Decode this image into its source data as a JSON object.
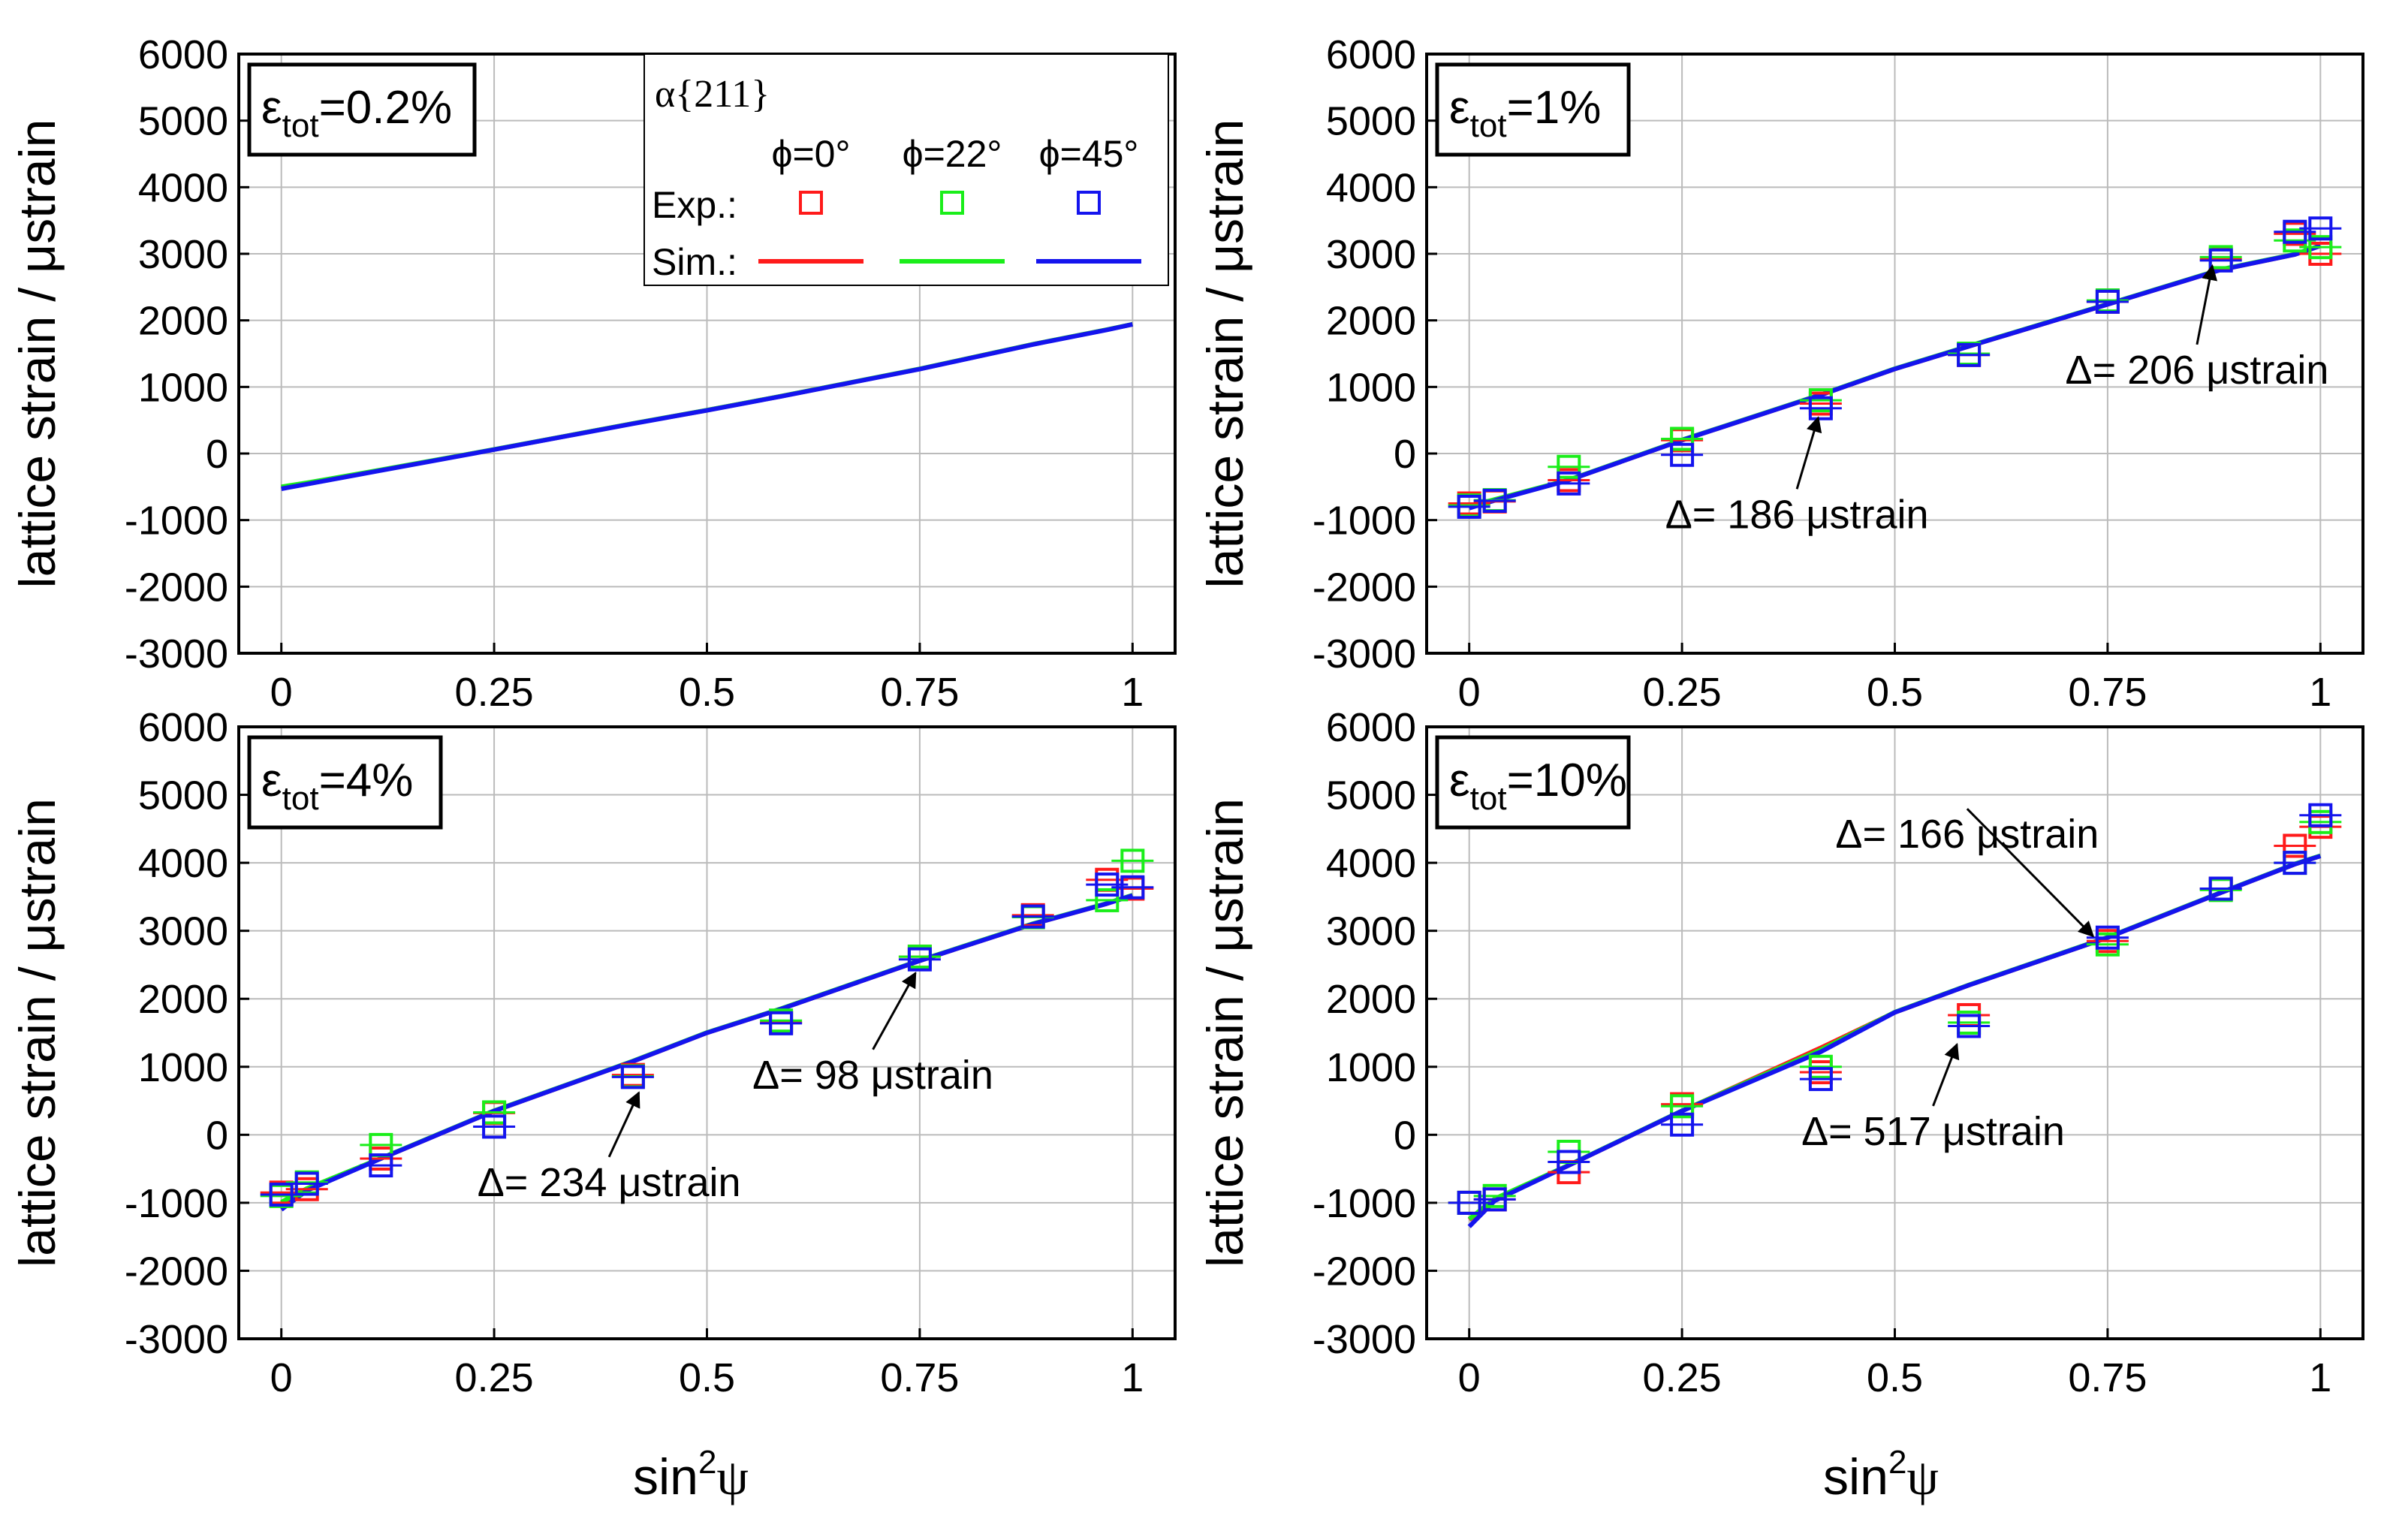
{
  "colors": {
    "red": "#ff1a1a",
    "green": "#1aee1a",
    "blue": "#1414ee",
    "grid": "#bbbbbb"
  },
  "axes": {
    "ylabel": "lattice strain / μstrain",
    "xlabel_base": "sin",
    "xlabel_sup": "2",
    "xlabel_end": "ψ",
    "xlim": [
      -0.05,
      1.05
    ],
    "ylim": [
      -3000,
      6000
    ],
    "xticks": [
      0,
      0.25,
      0.5,
      0.75,
      1
    ],
    "xtick_labels": [
      "0",
      "0.25",
      "0.5",
      "0.75",
      "1"
    ],
    "yticks": [
      -3000,
      -2000,
      -1000,
      0,
      1000,
      2000,
      3000,
      4000,
      5000,
      6000
    ],
    "ytick_labels": [
      "-3000",
      "-2000",
      "-1000",
      "0",
      "1000",
      "2000",
      "3000",
      "4000",
      "5000",
      "6000"
    ],
    "xgrid": [
      0,
      0.25,
      0.5,
      0.75,
      1
    ],
    "ygrid": [
      -3000,
      -2000,
      -1000,
      0,
      1000,
      2000,
      3000,
      4000,
      5000,
      6000
    ]
  },
  "legend": {
    "title": "α{211}",
    "col_phi0": "ϕ=0°",
    "col_phi22": "ϕ=22°",
    "col_phi45": "ϕ=45°",
    "row_exp": "Exp.:",
    "row_sim": "Sim.:"
  },
  "chart_data": [
    {
      "type": "scatter",
      "panel": "top-left",
      "title_base": "ε",
      "title_sub": "tot",
      "title_rest": "=0.2%",
      "series": [
        {
          "name": "Sim. ϕ=0°",
          "color": "red",
          "kind": "line",
          "x": [
            0,
            0.03,
            0.117,
            0.25,
            0.413,
            0.5,
            0.587,
            0.75,
            0.883,
            0.97,
            1
          ],
          "y": [
            -510,
            -450,
            -250,
            60,
            450,
            650,
            860,
            1270,
            1640,
            1860,
            1940
          ]
        },
        {
          "name": "Sim. ϕ=22°",
          "color": "green",
          "kind": "line",
          "x": [
            0,
            0.03,
            0.117,
            0.25,
            0.413,
            0.5,
            0.587,
            0.75,
            0.883,
            0.97,
            1
          ],
          "y": [
            -500,
            -440,
            -245,
            62,
            452,
            652,
            862,
            1272,
            1642,
            1862,
            1942
          ]
        },
        {
          "name": "Sim. ϕ=45°",
          "color": "blue",
          "kind": "line",
          "x": [
            0,
            0.03,
            0.117,
            0.25,
            0.413,
            0.5,
            0.587,
            0.75,
            0.883,
            0.97,
            1
          ],
          "y": [
            -530,
            -460,
            -255,
            58,
            448,
            648,
            858,
            1268,
            1638,
            1858,
            1940
          ]
        }
      ]
    },
    {
      "type": "scatter",
      "panel": "top-right",
      "title_base": "ε",
      "title_sub": "tot",
      "title_rest": "=1%",
      "annotations": [
        {
          "text": "Δ= 186 μstrain",
          "point_x": 0.41,
          "point_y": 540,
          "text_x": 0.385,
          "text_y": -1120
        },
        {
          "text": "Δ= 206 μstrain",
          "point_x": 0.873,
          "point_y": 2820,
          "text_x": 0.855,
          "text_y": 1050
        }
      ],
      "series": [
        {
          "name": "Sim. ϕ=0°",
          "color": "red",
          "kind": "line",
          "x": [
            0,
            0.03,
            0.117,
            0.25,
            0.413,
            0.5,
            0.587,
            0.75,
            0.883,
            0.97,
            1
          ],
          "y": [
            -800,
            -700,
            -400,
            200,
            880,
            1270,
            1610,
            2240,
            2760,
            2990,
            3120
          ]
        },
        {
          "name": "Sim. ϕ=22°",
          "color": "green",
          "kind": "line",
          "x": [
            0,
            0.03,
            0.117,
            0.25,
            0.413,
            0.5,
            0.587,
            0.75,
            0.883,
            0.97,
            1
          ],
          "y": [
            -790,
            -690,
            -395,
            205,
            885,
            1275,
            1615,
            2245,
            2765,
            2995,
            3125
          ]
        },
        {
          "name": "Sim. ϕ=45°",
          "color": "blue",
          "kind": "line",
          "x": [
            0,
            0.03,
            0.117,
            0.25,
            0.413,
            0.5,
            0.587,
            0.75,
            0.883,
            0.97,
            1
          ],
          "y": [
            -820,
            -705,
            -400,
            200,
            880,
            1270,
            1610,
            2240,
            2760,
            2990,
            3120
          ]
        },
        {
          "name": "Exp. ϕ=0°",
          "color": "red",
          "kind": "marker",
          "x": [
            0,
            0.03,
            0.117,
            0.25,
            0.413,
            0.587,
            0.75,
            0.883,
            0.97,
            1
          ],
          "y": [
            -750,
            -720,
            -400,
            200,
            750,
            1480,
            2280,
            2920,
            3300,
            3000
          ]
        },
        {
          "name": "Exp. ϕ=22°",
          "color": "green",
          "kind": "marker",
          "x": [
            0,
            0.03,
            0.117,
            0.25,
            0.413,
            0.587,
            0.75,
            0.883,
            0.97,
            1
          ],
          "y": [
            -780,
            -700,
            -200,
            220,
            800,
            1500,
            2300,
            2950,
            3200,
            3100
          ]
        },
        {
          "name": "Exp. ϕ=45°",
          "color": "blue",
          "kind": "marker",
          "x": [
            0,
            0.03,
            0.117,
            0.25,
            0.413,
            0.587,
            0.75,
            0.883,
            0.97,
            1
          ],
          "y": [
            -800,
            -710,
            -450,
            -20,
            680,
            1480,
            2280,
            2900,
            3330,
            3380
          ]
        }
      ]
    },
    {
      "type": "scatter",
      "panel": "bottom-left",
      "title_base": "ε",
      "title_sub": "tot",
      "title_rest": "=4%",
      "annotations": [
        {
          "text": "Δ= 234 μstrain",
          "point_x": 0.42,
          "point_y": 620,
          "text_x": 0.385,
          "text_y": -900
        },
        {
          "text": "Δ= 98 μstrain",
          "point_x": 0.745,
          "point_y": 2380,
          "text_x": 0.695,
          "text_y": 680
        }
      ],
      "series": [
        {
          "name": "Sim. ϕ=0°",
          "color": "red",
          "kind": "line",
          "x": [
            0,
            0.03,
            0.117,
            0.25,
            0.413,
            0.5,
            0.587,
            0.75,
            0.883,
            0.97,
            1
          ],
          "y": [
            -1000,
            -800,
            -350,
            350,
            1080,
            1500,
            1850,
            2560,
            3100,
            3400,
            3520
          ]
        },
        {
          "name": "Sim. ϕ=22°",
          "color": "green",
          "kind": "line",
          "x": [
            0,
            0.03,
            0.117,
            0.25,
            0.413,
            0.5,
            0.587,
            0.75,
            0.883,
            0.97,
            1
          ],
          "y": [
            -990,
            -790,
            -345,
            355,
            1085,
            1505,
            1855,
            2565,
            3105,
            3405,
            3525
          ]
        },
        {
          "name": "Sim. ϕ=45°",
          "color": "blue",
          "kind": "line",
          "x": [
            0,
            0.03,
            0.117,
            0.25,
            0.413,
            0.5,
            0.587,
            0.75,
            0.883,
            0.97,
            1
          ],
          "y": [
            -1100,
            -820,
            -350,
            350,
            1080,
            1500,
            1850,
            2560,
            3100,
            3400,
            3520
          ]
        },
        {
          "name": "Exp. ϕ=0°",
          "color": "red",
          "kind": "marker",
          "x": [
            0,
            0.03,
            0.117,
            0.25,
            0.413,
            0.587,
            0.75,
            0.883,
            0.97,
            1
          ],
          "y": [
            -850,
            -800,
            -350,
            320,
            880,
            1650,
            2620,
            3230,
            3750,
            3620
          ]
        },
        {
          "name": "Exp. ϕ=22°",
          "color": "green",
          "kind": "marker",
          "x": [
            0,
            0.03,
            0.117,
            0.25,
            0.413,
            0.587,
            0.75,
            0.883,
            0.97,
            1
          ],
          "y": [
            -900,
            -700,
            -150,
            330,
            860,
            1680,
            2620,
            3200,
            3450,
            4030
          ]
        },
        {
          "name": "Exp. ϕ=45°",
          "color": "blue",
          "kind": "marker",
          "x": [
            0,
            0.03,
            0.117,
            0.25,
            0.413,
            0.587,
            0.75,
            0.883,
            0.97,
            1
          ],
          "y": [
            -880,
            -720,
            -450,
            120,
            850,
            1640,
            2580,
            3210,
            3680,
            3640
          ]
        }
      ]
    },
    {
      "type": "scatter",
      "panel": "bottom-right",
      "title_base": "ε",
      "title_sub": "tot",
      "title_rest": "=10%",
      "annotations": [
        {
          "text": "Δ= 166 μstrain",
          "point_x": 0.733,
          "point_y": 2920,
          "text_x": 0.585,
          "text_y": 4220
        },
        {
          "text": "Δ= 517 μstrain",
          "point_x": 0.573,
          "point_y": 1330,
          "text_x": 0.545,
          "text_y": -150
        }
      ],
      "series": [
        {
          "name": "Sim. ϕ=0°",
          "color": "red",
          "kind": "line",
          "x": [
            0,
            0.03,
            0.117,
            0.25,
            0.413,
            0.5,
            0.587,
            0.75,
            0.883,
            0.97,
            1
          ],
          "y": [
            -1250,
            -950,
            -450,
            350,
            1280,
            1800,
            2200,
            2900,
            3560,
            3980,
            4100
          ]
        },
        {
          "name": "Sim. ϕ=22°",
          "color": "green",
          "kind": "line",
          "x": [
            0,
            0.03,
            0.117,
            0.25,
            0.413,
            0.5,
            0.587,
            0.75,
            0.883,
            0.97,
            1
          ],
          "y": [
            -1240,
            -940,
            -445,
            355,
            1250,
            1805,
            2205,
            2905,
            3565,
            3985,
            4105
          ]
        },
        {
          "name": "Sim. ϕ=45°",
          "color": "blue",
          "kind": "line",
          "x": [
            0,
            0.03,
            0.117,
            0.25,
            0.413,
            0.5,
            0.587,
            0.75,
            0.883,
            0.97,
            1
          ],
          "y": [
            -1350,
            -970,
            -450,
            350,
            1220,
            1800,
            2200,
            2900,
            3560,
            3980,
            4100
          ]
        },
        {
          "name": "Exp. ϕ=0°",
          "color": "red",
          "kind": "marker",
          "x": [
            0,
            0.03,
            0.117,
            0.25,
            0.413,
            0.587,
            0.75,
            0.883,
            0.97,
            1
          ],
          "y": [
            -1000,
            -950,
            -550,
            450,
            920,
            1760,
            2850,
            3620,
            4250,
            4530
          ]
        },
        {
          "name": "Exp. ϕ=22°",
          "color": "green",
          "kind": "marker",
          "x": [
            0,
            0.03,
            0.117,
            0.25,
            0.413,
            0.587,
            0.75,
            0.883,
            0.97,
            1
          ],
          "y": [
            -1000,
            -900,
            -250,
            420,
            1000,
            1650,
            2800,
            3600,
            4000,
            4600
          ]
        },
        {
          "name": "Exp. ϕ=45°",
          "color": "blue",
          "kind": "marker",
          "x": [
            0,
            0.03,
            0.117,
            0.25,
            0.413,
            0.587,
            0.75,
            0.883,
            0.97,
            1
          ],
          "y": [
            -1000,
            -950,
            -400,
            150,
            820,
            1600,
            2900,
            3620,
            4000,
            4700
          ]
        }
      ]
    }
  ]
}
